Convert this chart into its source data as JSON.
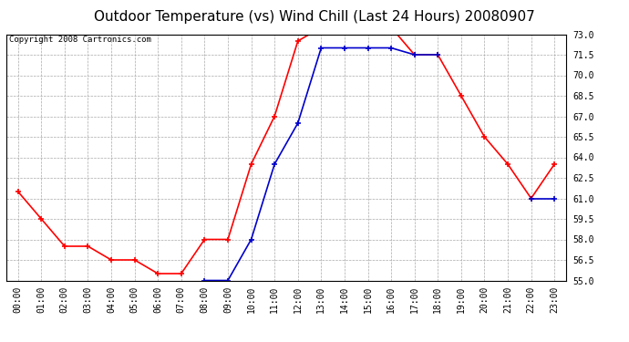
{
  "title": "Outdoor Temperature (vs) Wind Chill (Last 24 Hours) 20080907",
  "copyright": "Copyright 2008 Cartronics.com",
  "hours": [
    "00:00",
    "01:00",
    "02:00",
    "03:00",
    "04:00",
    "05:00",
    "06:00",
    "07:00",
    "08:00",
    "09:00",
    "10:00",
    "11:00",
    "12:00",
    "13:00",
    "14:00",
    "15:00",
    "16:00",
    "17:00",
    "18:00",
    "19:00",
    "20:00",
    "21:00",
    "22:00",
    "23:00"
  ],
  "temp": [
    61.5,
    59.5,
    57.5,
    57.5,
    56.5,
    56.5,
    55.5,
    55.5,
    58.0,
    58.0,
    63.5,
    67.0,
    72.5,
    73.5,
    73.5,
    73.5,
    73.5,
    71.5,
    71.5,
    68.5,
    65.5,
    63.5,
    61.0,
    63.5
  ],
  "windchill": [
    null,
    null,
    null,
    null,
    null,
    null,
    null,
    null,
    55.0,
    55.0,
    58.0,
    63.5,
    66.5,
    72.0,
    72.0,
    72.0,
    72.0,
    71.5,
    71.5,
    null,
    null,
    null,
    61.0,
    61.0
  ],
  "temp_color": "#FF0000",
  "windchill_color": "#0000CC",
  "background_color": "#FFFFFF",
  "plot_background": "#FFFFFF",
  "grid_color": "#AAAAAA",
  "ylim_min": 55.0,
  "ylim_max": 73.0,
  "yticks": [
    55.0,
    56.5,
    58.0,
    59.5,
    61.0,
    62.5,
    64.0,
    65.5,
    67.0,
    68.5,
    70.0,
    71.5,
    73.0
  ],
  "title_fontsize": 11,
  "copyright_fontsize": 6.5,
  "axis_fontsize": 7,
  "marker": "+",
  "marker_size": 5,
  "marker_edge_width": 1.2,
  "line_width": 1.2
}
